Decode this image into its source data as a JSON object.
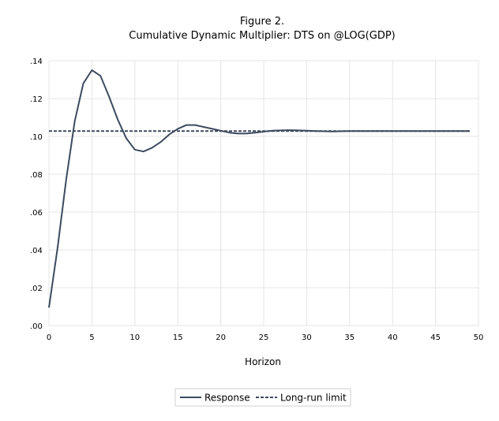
{
  "figure_label": "Figure 2.",
  "title": "Cumulative Dynamic Multiplier: DTS on @LOG(GDP)",
  "colors": {
    "series": "#3d4a5f",
    "grid": "#e4e4e4",
    "legend_border": "#cfcfcf"
  },
  "chart_data": {
    "type": "line",
    "title": "Cumulative Dynamic Multiplier: DTS on @LOG(GDP)",
    "xlabel": "Horizon",
    "ylabel": "",
    "xlim": [
      0,
      50
    ],
    "ylim": [
      0,
      0.14
    ],
    "x_ticks": [
      "0",
      "5",
      "10",
      "15",
      "20",
      "25",
      "30",
      "35",
      "40",
      "45",
      "50"
    ],
    "y_ticks": [
      ".00",
      ".02",
      ".04",
      ".06",
      ".08",
      ".10",
      ".12",
      ".14"
    ],
    "grid": true,
    "legend_position": "bottom-center",
    "series": [
      {
        "name": "Response",
        "style": "solid",
        "x": [
          0,
          1,
          2,
          3,
          4,
          5,
          6,
          7,
          8,
          9,
          10,
          11,
          12,
          13,
          14,
          15,
          16,
          17,
          18,
          19,
          20,
          21,
          22,
          23,
          24,
          25,
          26,
          27,
          28,
          29,
          30,
          31,
          32,
          33,
          34,
          35,
          36,
          37,
          38,
          39,
          40,
          41,
          42,
          43,
          44,
          45,
          46,
          47,
          48,
          49
        ],
        "values": [
          0.0095,
          0.041,
          0.077,
          0.108,
          0.128,
          0.135,
          0.132,
          0.121,
          0.109,
          0.099,
          0.093,
          0.092,
          0.094,
          0.097,
          0.101,
          0.104,
          0.106,
          0.106,
          0.105,
          0.104,
          0.103,
          0.102,
          0.1015,
          0.1015,
          0.102,
          0.1025,
          0.103,
          0.1032,
          0.1033,
          0.1032,
          0.103,
          0.1028,
          0.1027,
          0.1026,
          0.1027,
          0.1028,
          0.1028,
          0.1028,
          0.1028,
          0.1028,
          0.1028,
          0.1028,
          0.1028,
          0.1028,
          0.1028,
          0.1028,
          0.1028,
          0.1028,
          0.1028,
          0.1028
        ]
      },
      {
        "name": "Long-run limit",
        "style": "dashed",
        "x": [
          0,
          49
        ],
        "values": [
          0.1028,
          0.1028
        ]
      }
    ]
  }
}
